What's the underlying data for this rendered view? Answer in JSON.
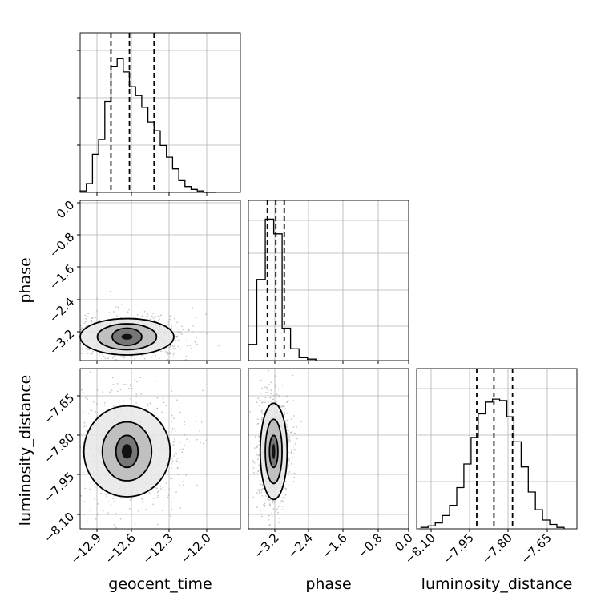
{
  "chart_data": {
    "type": "corner",
    "parameters": [
      "geocent_time",
      "phase",
      "luminosity_distance"
    ],
    "grid": true,
    "histograms": [
      {
        "parameter": "geocent_time",
        "xlim": [
          -13.0,
          -11.7
        ],
        "ylim": [
          0,
          1.0
        ],
        "bin_edges": [
          -13.0,
          -12.95,
          -12.9,
          -12.85,
          -12.8,
          -12.75,
          -12.7,
          -12.65,
          -12.6,
          -12.55,
          -12.5,
          -12.45,
          -12.4,
          -12.35,
          -12.3,
          -12.25,
          -12.2,
          -12.15,
          -12.1,
          -12.05,
          -12.0,
          -11.95,
          -11.9
        ],
        "counts": [
          0.01,
          0.06,
          0.26,
          0.36,
          0.62,
          0.86,
          0.91,
          0.82,
          0.72,
          0.66,
          0.58,
          0.48,
          0.42,
          0.32,
          0.24,
          0.16,
          0.08,
          0.04,
          0.02,
          0.01,
          0.0,
          0.0
        ],
        "quantiles": [
          -12.75,
          -12.6,
          -12.4
        ]
      },
      {
        "parameter": "phase",
        "xlim": [
          -3.8,
          0.0
        ],
        "ylim": [
          0,
          1.0
        ],
        "bin_edges": [
          -3.8,
          -3.6,
          -3.4,
          -3.2,
          -3.0,
          -2.8,
          -2.6,
          -2.4,
          -2.2
        ],
        "counts": [
          0.11,
          0.55,
          0.96,
          0.86,
          0.22,
          0.08,
          0.02,
          0.01
        ],
        "quantiles": [
          -3.35,
          -3.15,
          -2.95
        ]
      },
      {
        "parameter": "luminosity_distance",
        "xlim": [
          -8.14,
          -7.58
        ],
        "ylim": [
          0,
          1.0
        ],
        "bin_edges": [
          -8.125,
          -8.1,
          -8.075,
          -8.05,
          -8.025,
          -8.0,
          -7.975,
          -7.95,
          -7.925,
          -7.9,
          -7.875,
          -7.85,
          -7.825,
          -7.8,
          -7.775,
          -7.75,
          -7.725,
          -7.7,
          -7.675,
          -7.65,
          -7.625
        ],
        "counts": [
          0.01,
          0.02,
          0.04,
          0.09,
          0.16,
          0.28,
          0.44,
          0.62,
          0.78,
          0.86,
          0.88,
          0.87,
          0.76,
          0.59,
          0.42,
          0.25,
          0.13,
          0.06,
          0.03,
          0.01
        ],
        "quantiles": [
          -7.93,
          -7.87,
          -7.805
        ]
      }
    ],
    "pairs": [
      {
        "x": "geocent_time",
        "y": "phase",
        "xlim": [
          -13.0,
          -11.7
        ],
        "ylim": [
          -3.7,
          0.0
        ],
        "center": [
          -12.62,
          -3.15
        ],
        "contours": [
          {
            "rx": 0.12,
            "ry": 0.2
          },
          {
            "rx": 0.24,
            "ry": 0.3
          },
          {
            "rx": 0.38,
            "ry": 0.42
          }
        ]
      },
      {
        "x": "geocent_time",
        "y": "luminosity_distance",
        "xlim": [
          -13.0,
          -11.7
        ],
        "ylim": [
          -8.14,
          -7.54
        ],
        "center": [
          -12.62,
          -7.85
        ],
        "contours": [
          {
            "rx": 0.09,
            "ry": 0.06
          },
          {
            "rx": 0.2,
            "ry": 0.11
          },
          {
            "rx": 0.35,
            "ry": 0.17
          }
        ]
      },
      {
        "x": "phase",
        "y": "luminosity_distance",
        "xlim": [
          -3.8,
          0.0
        ],
        "ylim": [
          -8.14,
          -7.54
        ],
        "center": [
          -3.2,
          -7.85
        ],
        "contours": [
          {
            "rx": 0.1,
            "ry": 0.06
          },
          {
            "rx": 0.2,
            "ry": 0.12
          },
          {
            "rx": 0.32,
            "ry": 0.18
          }
        ]
      }
    ],
    "ticks": {
      "geocent_time": [
        "−12.9",
        "−12.6",
        "−12.3",
        "−12.0"
      ],
      "phase": [
        "−3.2",
        "−2.4",
        "−1.6",
        "−0.8",
        "0.0"
      ],
      "luminosity_distance_x": [
        "−8.10",
        "−7.95",
        "−7.80",
        "−7.65"
      ],
      "phase_y": [
        "0.0",
        "−0.8",
        "−1.6",
        "−2.4",
        "−3.2"
      ],
      "luminosity_distance_y": [
        "−7.65",
        "−7.80",
        "−7.95",
        "−8.10"
      ]
    },
    "xlabels": [
      "geocent_time",
      "phase",
      "luminosity_distance"
    ],
    "ylabels": [
      "phase",
      "luminosity_distance"
    ]
  }
}
